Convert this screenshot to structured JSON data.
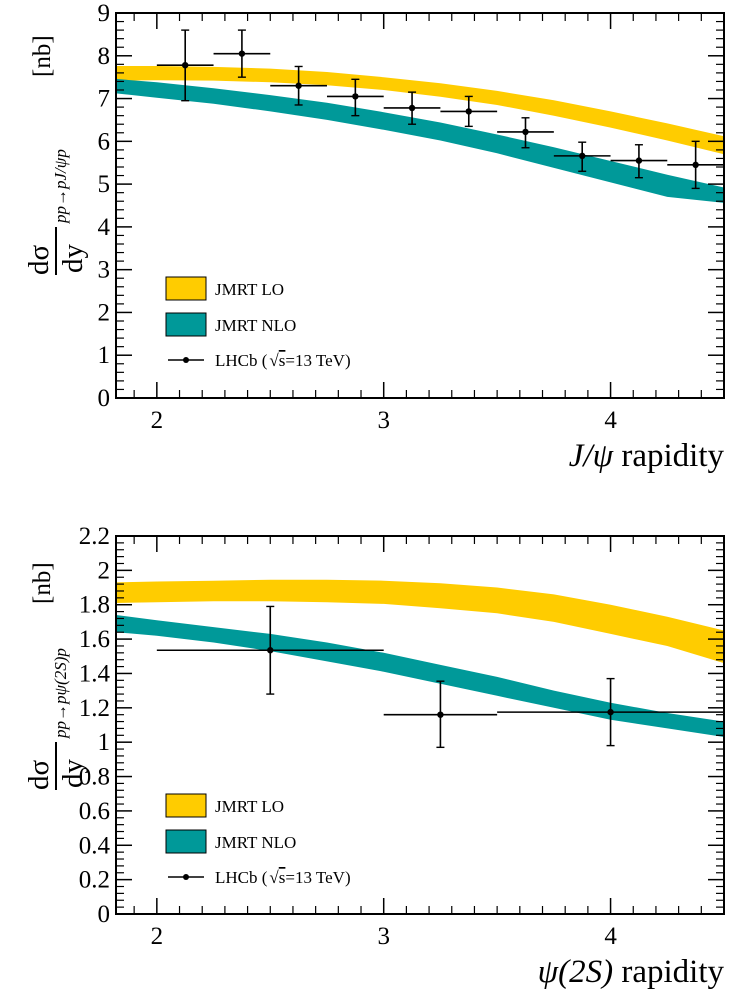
{
  "chart_data": [
    {
      "type": "line",
      "xlabel": {
        "italic": "J/ψ",
        "text": " rapidity"
      },
      "ylabel": {
        "frac_num": "dσ",
        "frac_den": "dy",
        "subscript": "pp→pJ/ψp",
        "unit": "[nb]"
      },
      "xlim": [
        1.82,
        4.5
      ],
      "ylim": [
        0,
        9
      ],
      "xticks": [
        "2",
        "3",
        "4"
      ],
      "xtick_values": [
        2,
        3,
        4
      ],
      "yticks": [
        "0",
        "1",
        "2",
        "3",
        "4",
        "5",
        "6",
        "7",
        "8",
        "9"
      ],
      "ytick_values": [
        0,
        1,
        2,
        3,
        4,
        5,
        6,
        7,
        8,
        9
      ],
      "bands": [
        {
          "name": "JMRT LO",
          "color": "#ffcc00",
          "x": [
            1.82,
            2.0,
            2.25,
            2.5,
            2.75,
            3.0,
            3.25,
            3.5,
            3.75,
            4.0,
            4.25,
            4.5
          ],
          "upper": [
            7.76,
            7.76,
            7.74,
            7.7,
            7.62,
            7.5,
            7.36,
            7.18,
            6.96,
            6.7,
            6.42,
            6.12
          ],
          "lower": [
            7.42,
            7.43,
            7.42,
            7.38,
            7.31,
            7.2,
            7.04,
            6.85,
            6.6,
            6.32,
            6.02,
            5.7
          ]
        },
        {
          "name": "JMRT NLO",
          "color": "#009999",
          "x": [
            1.82,
            2.0,
            2.25,
            2.5,
            2.75,
            3.0,
            3.25,
            3.5,
            3.75,
            4.0,
            4.25,
            4.5
          ],
          "upper": [
            7.46,
            7.38,
            7.24,
            7.08,
            6.9,
            6.68,
            6.44,
            6.16,
            5.86,
            5.54,
            5.22,
            4.92
          ],
          "lower": [
            7.12,
            7.02,
            6.88,
            6.7,
            6.5,
            6.27,
            6.02,
            5.72,
            5.38,
            5.04,
            4.7,
            4.56
          ]
        }
      ],
      "points": {
        "name": "LHCb ( s=13 TeV)",
        "x": [
          2.125,
          2.375,
          2.625,
          2.875,
          3.125,
          3.375,
          3.625,
          3.875,
          4.125,
          4.375
        ],
        "xerr": [
          0.125,
          0.125,
          0.125,
          0.125,
          0.125,
          0.125,
          0.125,
          0.125,
          0.125,
          0.125
        ],
        "y": [
          7.78,
          8.05,
          7.3,
          7.05,
          6.78,
          6.7,
          6.22,
          5.66,
          5.55,
          5.45
        ],
        "ylow": [
          6.95,
          7.5,
          6.85,
          6.6,
          6.4,
          6.35,
          5.85,
          5.3,
          5.15,
          4.9
        ],
        "yhigh": [
          8.6,
          8.6,
          7.75,
          7.45,
          7.15,
          7.05,
          6.55,
          5.98,
          5.92,
          6.0
        ]
      },
      "legend": [
        {
          "label": "JMRT LO",
          "kind": "band",
          "color": "#ffcc00"
        },
        {
          "label": "JMRT NLO",
          "kind": "band",
          "color": "#009999"
        },
        {
          "label": "LHCb (",
          "label_s": "s",
          "label_tail": "=13 TeV)",
          "kind": "marker",
          "color": "#000000"
        }
      ],
      "legend_placement": "bottom-left",
      "grid": false
    },
    {
      "type": "line",
      "xlabel": {
        "italic": "ψ(2S)",
        "text": " rapidity"
      },
      "ylabel": {
        "frac_num": "dσ",
        "frac_den": "dy",
        "subscript": "pp→pψ(2S)p",
        "unit": "[nb]"
      },
      "xlim": [
        1.82,
        4.5
      ],
      "ylim": [
        0,
        2.2
      ],
      "xticks": [
        "2",
        "3",
        "4"
      ],
      "xtick_values": [
        2,
        3,
        4
      ],
      "yticks": [
        "0",
        "0.2",
        "0.4",
        "0.6",
        "0.8",
        "1",
        "1.2",
        "1.4",
        "1.6",
        "1.8",
        "2",
        "2.2"
      ],
      "ytick_values": [
        0,
        0.2,
        0.4,
        0.6,
        0.8,
        1,
        1.2,
        1.4,
        1.6,
        1.8,
        2,
        2.2
      ],
      "bands": [
        {
          "name": "JMRT LO",
          "color": "#ffcc00",
          "x": [
            1.82,
            2.0,
            2.25,
            2.5,
            2.75,
            3.0,
            3.25,
            3.5,
            3.75,
            4.0,
            4.25,
            4.5
          ],
          "upper": [
            1.93,
            1.935,
            1.94,
            1.945,
            1.945,
            1.94,
            1.925,
            1.9,
            1.86,
            1.8,
            1.73,
            1.65
          ],
          "lower": [
            1.81,
            1.815,
            1.82,
            1.82,
            1.815,
            1.805,
            1.78,
            1.75,
            1.7,
            1.63,
            1.56,
            1.46
          ]
        },
        {
          "name": "JMRT NLO",
          "color": "#009999",
          "x": [
            1.82,
            2.0,
            2.25,
            2.5,
            2.75,
            3.0,
            3.25,
            3.5,
            3.75,
            4.0,
            4.25,
            4.5
          ],
          "upper": [
            1.74,
            1.71,
            1.67,
            1.63,
            1.58,
            1.52,
            1.45,
            1.38,
            1.3,
            1.23,
            1.17,
            1.12
          ],
          "lower": [
            1.64,
            1.62,
            1.58,
            1.53,
            1.47,
            1.41,
            1.34,
            1.27,
            1.2,
            1.13,
            1.08,
            1.03
          ]
        }
      ],
      "points": {
        "name": "LHCb ( s=13 TeV)",
        "x": [
          2.5,
          3.25,
          4.0
        ],
        "xerr": [
          0.5,
          0.25,
          0.5
        ],
        "y": [
          1.535,
          1.16,
          1.175
        ],
        "ylow": [
          1.28,
          0.97,
          0.98
        ],
        "yhigh": [
          1.79,
          1.355,
          1.37
        ]
      },
      "legend": [
        {
          "label": "JMRT LO",
          "kind": "band",
          "color": "#ffcc00"
        },
        {
          "label": "JMRT NLO",
          "kind": "band",
          "color": "#009999"
        },
        {
          "label": "LHCb (",
          "label_s": "s",
          "label_tail": "=13 TeV)",
          "kind": "marker",
          "color": "#000000"
        }
      ],
      "legend_placement": "bottom-left",
      "grid": false
    }
  ]
}
